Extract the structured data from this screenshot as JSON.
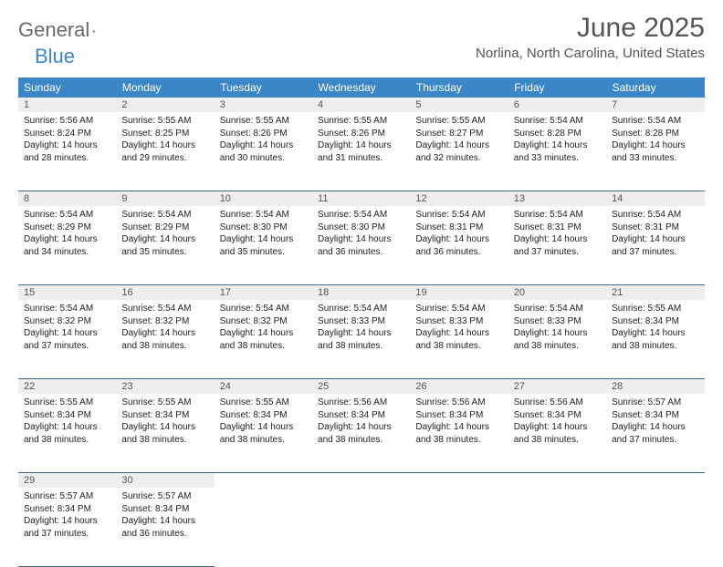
{
  "logo": {
    "word1": "General",
    "word2": "Blue"
  },
  "title": "June 2025",
  "location": "Norlina, North Carolina, United States",
  "colors": {
    "header_bg": "#3b86c6",
    "header_text": "#ffffff",
    "daynum_bg": "#eeeeee",
    "border": "#3b6a8a",
    "logo_gray": "#6a6a6a",
    "logo_blue": "#3b86c6",
    "title_gray": "#555555"
  },
  "weekdays": [
    "Sunday",
    "Monday",
    "Tuesday",
    "Wednesday",
    "Thursday",
    "Friday",
    "Saturday"
  ],
  "weeks": [
    [
      {
        "n": "1",
        "sr": "5:56 AM",
        "ss": "8:24 PM",
        "dl": "14 hours and 28 minutes."
      },
      {
        "n": "2",
        "sr": "5:55 AM",
        "ss": "8:25 PM",
        "dl": "14 hours and 29 minutes."
      },
      {
        "n": "3",
        "sr": "5:55 AM",
        "ss": "8:26 PM",
        "dl": "14 hours and 30 minutes."
      },
      {
        "n": "4",
        "sr": "5:55 AM",
        "ss": "8:26 PM",
        "dl": "14 hours and 31 minutes."
      },
      {
        "n": "5",
        "sr": "5:55 AM",
        "ss": "8:27 PM",
        "dl": "14 hours and 32 minutes."
      },
      {
        "n": "6",
        "sr": "5:54 AM",
        "ss": "8:28 PM",
        "dl": "14 hours and 33 minutes."
      },
      {
        "n": "7",
        "sr": "5:54 AM",
        "ss": "8:28 PM",
        "dl": "14 hours and 33 minutes."
      }
    ],
    [
      {
        "n": "8",
        "sr": "5:54 AM",
        "ss": "8:29 PM",
        "dl": "14 hours and 34 minutes."
      },
      {
        "n": "9",
        "sr": "5:54 AM",
        "ss": "8:29 PM",
        "dl": "14 hours and 35 minutes."
      },
      {
        "n": "10",
        "sr": "5:54 AM",
        "ss": "8:30 PM",
        "dl": "14 hours and 35 minutes."
      },
      {
        "n": "11",
        "sr": "5:54 AM",
        "ss": "8:30 PM",
        "dl": "14 hours and 36 minutes."
      },
      {
        "n": "12",
        "sr": "5:54 AM",
        "ss": "8:31 PM",
        "dl": "14 hours and 36 minutes."
      },
      {
        "n": "13",
        "sr": "5:54 AM",
        "ss": "8:31 PM",
        "dl": "14 hours and 37 minutes."
      },
      {
        "n": "14",
        "sr": "5:54 AM",
        "ss": "8:31 PM",
        "dl": "14 hours and 37 minutes."
      }
    ],
    [
      {
        "n": "15",
        "sr": "5:54 AM",
        "ss": "8:32 PM",
        "dl": "14 hours and 37 minutes."
      },
      {
        "n": "16",
        "sr": "5:54 AM",
        "ss": "8:32 PM",
        "dl": "14 hours and 38 minutes."
      },
      {
        "n": "17",
        "sr": "5:54 AM",
        "ss": "8:32 PM",
        "dl": "14 hours and 38 minutes."
      },
      {
        "n": "18",
        "sr": "5:54 AM",
        "ss": "8:33 PM",
        "dl": "14 hours and 38 minutes."
      },
      {
        "n": "19",
        "sr": "5:54 AM",
        "ss": "8:33 PM",
        "dl": "14 hours and 38 minutes."
      },
      {
        "n": "20",
        "sr": "5:54 AM",
        "ss": "8:33 PM",
        "dl": "14 hours and 38 minutes."
      },
      {
        "n": "21",
        "sr": "5:55 AM",
        "ss": "8:34 PM",
        "dl": "14 hours and 38 minutes."
      }
    ],
    [
      {
        "n": "22",
        "sr": "5:55 AM",
        "ss": "8:34 PM",
        "dl": "14 hours and 38 minutes."
      },
      {
        "n": "23",
        "sr": "5:55 AM",
        "ss": "8:34 PM",
        "dl": "14 hours and 38 minutes."
      },
      {
        "n": "24",
        "sr": "5:55 AM",
        "ss": "8:34 PM",
        "dl": "14 hours and 38 minutes."
      },
      {
        "n": "25",
        "sr": "5:56 AM",
        "ss": "8:34 PM",
        "dl": "14 hours and 38 minutes."
      },
      {
        "n": "26",
        "sr": "5:56 AM",
        "ss": "8:34 PM",
        "dl": "14 hours and 38 minutes."
      },
      {
        "n": "27",
        "sr": "5:56 AM",
        "ss": "8:34 PM",
        "dl": "14 hours and 38 minutes."
      },
      {
        "n": "28",
        "sr": "5:57 AM",
        "ss": "8:34 PM",
        "dl": "14 hours and 37 minutes."
      }
    ],
    [
      {
        "n": "29",
        "sr": "5:57 AM",
        "ss": "8:34 PM",
        "dl": "14 hours and 37 minutes."
      },
      {
        "n": "30",
        "sr": "5:57 AM",
        "ss": "8:34 PM",
        "dl": "14 hours and 36 minutes."
      },
      null,
      null,
      null,
      null,
      null
    ]
  ],
  "labels": {
    "sunrise": "Sunrise:",
    "sunset": "Sunset:",
    "daylight": "Daylight:"
  }
}
